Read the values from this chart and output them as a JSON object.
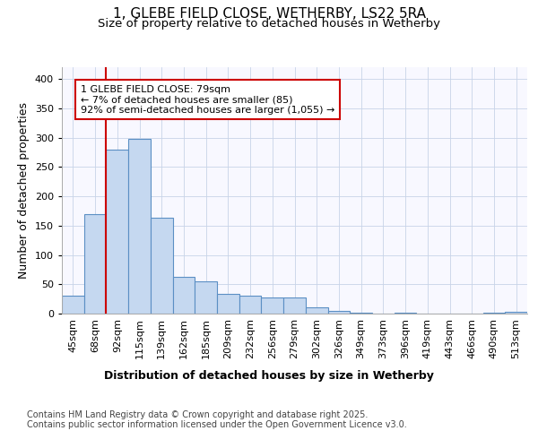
{
  "title_line1": "1, GLEBE FIELD CLOSE, WETHERBY, LS22 5RA",
  "title_line2": "Size of property relative to detached houses in Wetherby",
  "xlabel": "Distribution of detached houses by size in Wetherby",
  "ylabel": "Number of detached properties",
  "bar_labels": [
    "45sqm",
    "68sqm",
    "92sqm",
    "115sqm",
    "139sqm",
    "162sqm",
    "185sqm",
    "209sqm",
    "232sqm",
    "256sqm",
    "279sqm",
    "302sqm",
    "326sqm",
    "349sqm",
    "373sqm",
    "396sqm",
    "419sqm",
    "443sqm",
    "466sqm",
    "490sqm",
    "513sqm"
  ],
  "bar_values": [
    30,
    170,
    280,
    298,
    163,
    63,
    55,
    33,
    30,
    27,
    27,
    10,
    5,
    2,
    0,
    1,
    0,
    0,
    0,
    1,
    3
  ],
  "bar_color": "#c5d8f0",
  "bar_edgecolor": "#5b8fc4",
  "vline_x_bar_index": 1,
  "vline_color": "#cc0000",
  "annotation_text": "1 GLEBE FIELD CLOSE: 79sqm\n← 7% of detached houses are smaller (85)\n92% of semi-detached houses are larger (1,055) →",
  "annotation_box_edgecolor": "#cc0000",
  "annotation_box_facecolor": "#ffffff",
  "ylim": [
    0,
    420
  ],
  "yticks": [
    0,
    50,
    100,
    150,
    200,
    250,
    300,
    350,
    400
  ],
  "background_color": "#ffffff",
  "plot_background": "#f8f8ff",
  "footer_text": "Contains HM Land Registry data © Crown copyright and database right 2025.\nContains public sector information licensed under the Open Government Licence v3.0.",
  "title_fontsize": 11,
  "subtitle_fontsize": 9.5,
  "axis_label_fontsize": 9,
  "tick_fontsize": 8,
  "footer_fontsize": 7,
  "annotation_fontsize": 8
}
